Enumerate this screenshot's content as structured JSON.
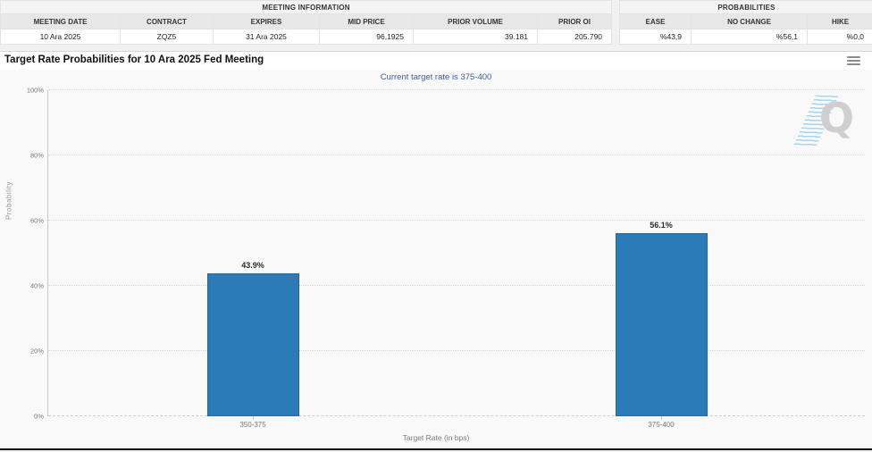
{
  "meeting_info": {
    "title": "MEETING INFORMATION",
    "headers": [
      "MEETING DATE",
      "CONTRACT",
      "EXPIRES",
      "MID PRICE",
      "PRIOR VOLUME",
      "PRIOR OI"
    ],
    "values": [
      "10 Ara 2025",
      "ZQZ5",
      "31 Ara 2025",
      "96,1925",
      "39.181",
      "205.790"
    ]
  },
  "probabilities": {
    "title": "PROBABILITIES",
    "headers": [
      "EASE",
      "NO CHANGE",
      "HIKE"
    ],
    "values": [
      "%43,9",
      "%56,1",
      "%0,0"
    ]
  },
  "chart_data": {
    "type": "bar",
    "title": "Target Rate Probabilities for 10 Ara 2025 Fed Meeting",
    "subtitle": "Current target rate is 375-400",
    "categories": [
      "350-375",
      "375-400"
    ],
    "values": [
      43.9,
      56.1
    ],
    "value_labels": [
      "43.9%",
      "56.1%"
    ],
    "xlabel": "Target Rate (in bps)",
    "ylabel": "Probability",
    "ylim": [
      0,
      100
    ],
    "yticks": [
      "0%",
      "20%",
      "40%",
      "60%",
      "80%",
      "100%"
    ],
    "bar_color": "#2b7bb9",
    "grid": "horizontal-dotted",
    "legend": "none"
  },
  "watermark_letter": "Q",
  "colors": {
    "bar": "#2b7bb9",
    "subtitle_text": "#3c5f99",
    "panel_bg": "#f9f9f9",
    "header_bg": "#e7e7e7"
  }
}
